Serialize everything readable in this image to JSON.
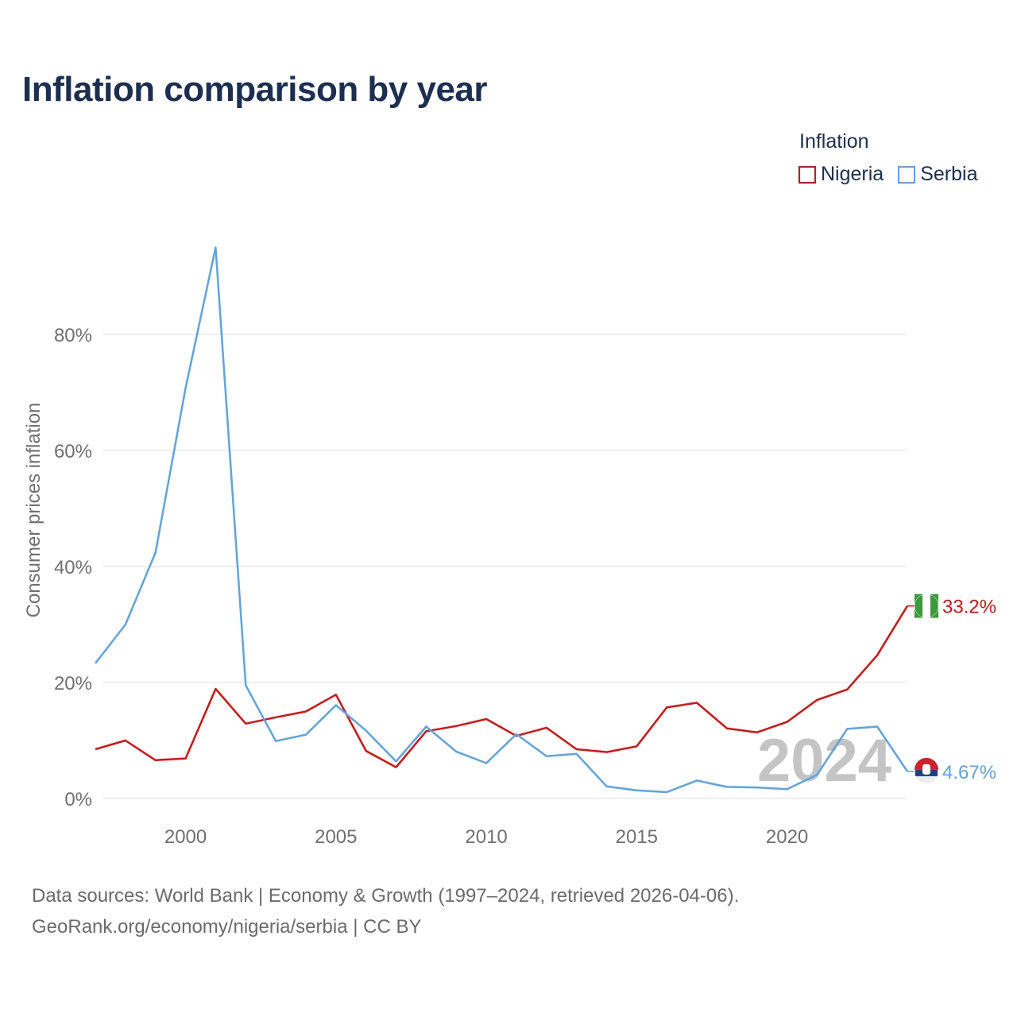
{
  "title": "Inflation comparison by year",
  "legend": {
    "title": "Inflation",
    "items": [
      {
        "label": "Nigeria",
        "color": "#e00f0f"
      },
      {
        "label": "Serbia",
        "color": "#5aa5e6"
      }
    ]
  },
  "year_watermark": "2024",
  "footer": {
    "line1": "Data sources: World Bank | Economy & Growth (1997–2024, retrieved 2026-04-06).",
    "line2": "GeoRank.org/economy/nigeria/serbia | CC BY"
  },
  "chart_data": {
    "type": "line",
    "title": "Inflation comparison by year",
    "xlabel": "",
    "ylabel": "Consumer prices inflation",
    "xlim": [
      1997,
      2024
    ],
    "ylim": [
      0,
      100
    ],
    "grid": true,
    "x": [
      1997,
      1998,
      1999,
      2000,
      2001,
      2002,
      2003,
      2004,
      2005,
      2006,
      2007,
      2008,
      2009,
      2010,
      2011,
      2012,
      2013,
      2014,
      2015,
      2016,
      2017,
      2018,
      2019,
      2020,
      2021,
      2022,
      2023,
      2024
    ],
    "x_ticks": [
      2000,
      2005,
      2010,
      2015,
      2020
    ],
    "x_tick_labels": [
      "2000",
      "2005",
      "2010",
      "2015",
      "2020"
    ],
    "y_ticks": [
      0,
      20,
      40,
      60,
      80
    ],
    "y_tick_labels": [
      "0%",
      "20%",
      "40%",
      "60%",
      "80%"
    ],
    "series": [
      {
        "name": "Nigeria",
        "color": "#e00f0f",
        "end_label": "33.2%",
        "values": [
          8.5,
          10.0,
          6.6,
          6.9,
          18.9,
          12.9,
          14.0,
          15.0,
          17.9,
          8.2,
          5.4,
          11.6,
          12.5,
          13.7,
          10.8,
          12.2,
          8.5,
          8.0,
          9.0,
          15.7,
          16.5,
          12.1,
          11.4,
          13.2,
          17.0,
          18.8,
          24.7,
          33.2
        ]
      },
      {
        "name": "Serbia",
        "color": "#5aa5e6",
        "end_label": "4.67%",
        "values": [
          23.3,
          30.0,
          42.4,
          70.8,
          95.0,
          19.5,
          9.9,
          11.0,
          16.1,
          11.7,
          6.4,
          12.4,
          8.1,
          6.1,
          11.1,
          7.3,
          7.7,
          2.1,
          1.4,
          1.1,
          3.1,
          2.0,
          1.9,
          1.6,
          4.1,
          12.0,
          12.4,
          4.67
        ]
      }
    ]
  }
}
